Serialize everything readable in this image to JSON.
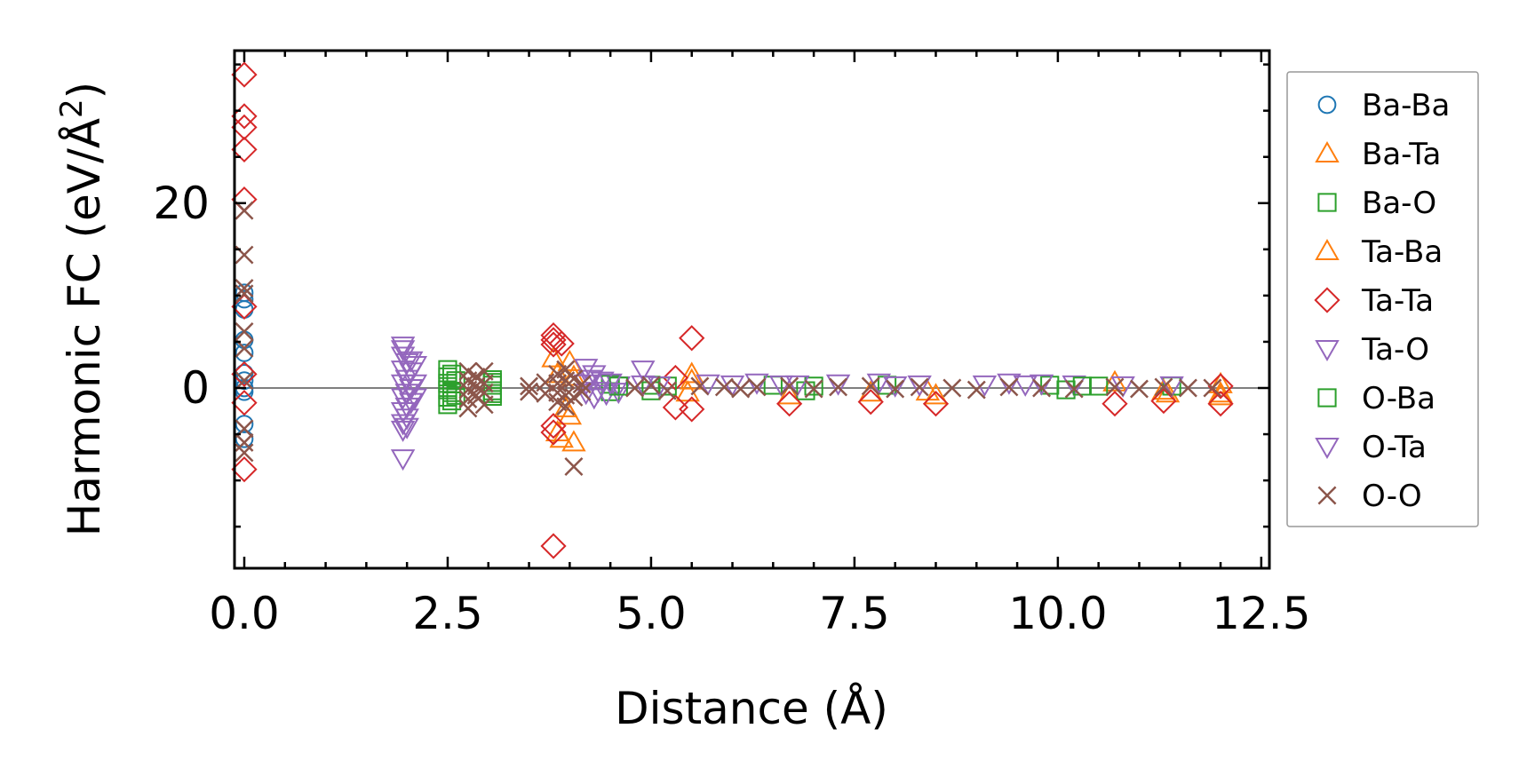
{
  "chart_data": {
    "type": "scatter",
    "title": "",
    "xlabel": "Distance (Å)",
    "ylabel_main": "Harmonic FC (eV/Å",
    "ylabel_sup": "2",
    "ylabel_close": ")",
    "xlim": [
      -0.12,
      12.6
    ],
    "ylim": [
      -19.5,
      36.5
    ],
    "xticks": [
      0.0,
      2.5,
      5.0,
      7.5,
      10.0,
      12.5
    ],
    "xtick_labels": [
      "0.0",
      "2.5",
      "5.0",
      "7.5",
      "10.0",
      "12.5"
    ],
    "yticks": [
      0,
      20
    ],
    "ytick_labels": [
      "0",
      "20"
    ],
    "x_minor_step": 0.5,
    "y_minor_step": 5,
    "hline_y": 0,
    "legend_position": "right",
    "series": [
      {
        "name": "Ba-Ba",
        "marker": "circle",
        "color": "#1f77b4",
        "points": [
          [
            0,
            10.3
          ],
          [
            0,
            9.6
          ],
          [
            0,
            8.5
          ],
          [
            0,
            5.2
          ],
          [
            0,
            3.8
          ],
          [
            0,
            1.6
          ],
          [
            0,
            0.8
          ],
          [
            0,
            0
          ],
          [
            0,
            -0.4
          ],
          [
            0,
            -3.9
          ],
          [
            0,
            -5.5
          ]
        ]
      },
      {
        "name": "Ba-Ta",
        "marker": "triangle-up",
        "color": "#ff7f0e",
        "points": [
          [
            3.85,
            1.5
          ],
          [
            3.85,
            -4.8
          ],
          [
            3.9,
            -5.5
          ],
          [
            4.0,
            2.8
          ],
          [
            4.05,
            -5.9
          ],
          [
            4.0,
            -3.0
          ],
          [
            5.5,
            1.5
          ],
          [
            5.45,
            -0.5
          ],
          [
            6.7,
            -0.8
          ],
          [
            7.7,
            -0.5
          ],
          [
            8.5,
            -0.8
          ],
          [
            10.7,
            0.6
          ],
          [
            11.35,
            -0.6
          ],
          [
            12.0,
            0.4
          ],
          [
            12.0,
            -0.9
          ],
          [
            12.0,
            -0.6
          ]
        ]
      },
      {
        "name": "Ba-O",
        "marker": "square",
        "color": "#2ca02c",
        "points": [
          [
            2.5,
            2.0
          ],
          [
            2.5,
            1.2
          ],
          [
            2.5,
            0.5
          ],
          [
            2.5,
            -0.2
          ],
          [
            2.5,
            -1.0
          ],
          [
            2.5,
            -1.8
          ],
          [
            2.6,
            0.8
          ],
          [
            2.6,
            -0.8
          ],
          [
            3.05,
            0.9
          ],
          [
            3.05,
            0.3
          ],
          [
            3.05,
            -0.3
          ],
          [
            3.05,
            -0.9
          ],
          [
            4.5,
            0.4
          ],
          [
            4.5,
            -0.4
          ],
          [
            5.0,
            0.3
          ],
          [
            5.0,
            -0.3
          ],
          [
            6.5,
            0.3
          ],
          [
            6.9,
            -0.3
          ],
          [
            7.9,
            0.3
          ],
          [
            9.9,
            0.3
          ],
          [
            10.1,
            -0.2
          ],
          [
            10.5,
            0.2
          ],
          [
            11.4,
            0.2
          ]
        ]
      },
      {
        "name": "Ta-Ba",
        "marker": "triangle-up",
        "color": "#ff7f0e",
        "points": [
          [
            3.8,
            3.2
          ],
          [
            3.95,
            -2.2
          ],
          [
            4.05,
            1.2
          ],
          [
            5.5,
            0.8
          ],
          [
            8.4,
            -0.4
          ],
          [
            11.3,
            -0.3
          ]
        ]
      },
      {
        "name": "Ta-Ta",
        "marker": "diamond",
        "color": "#d62728",
        "points": [
          [
            0,
            33.9
          ],
          [
            0,
            29.4
          ],
          [
            0,
            28.2
          ],
          [
            0,
            25.8
          ],
          [
            0,
            20.4
          ],
          [
            0,
            8.8
          ],
          [
            0,
            1.5
          ],
          [
            0,
            -1.6
          ],
          [
            0,
            -8.8
          ],
          [
            3.8,
            5.7
          ],
          [
            3.8,
            5.2
          ],
          [
            3.8,
            4.7
          ],
          [
            3.8,
            -4.1
          ],
          [
            3.8,
            -4.8
          ],
          [
            3.8,
            -17.1
          ],
          [
            3.9,
            4.8
          ],
          [
            5.3,
            1.1
          ],
          [
            5.3,
            -2.1
          ],
          [
            5.5,
            5.4
          ],
          [
            5.5,
            -2.3
          ],
          [
            6.7,
            -1.7
          ],
          [
            7.7,
            -1.5
          ],
          [
            8.5,
            -1.7
          ],
          [
            10.7,
            -1.7
          ],
          [
            11.3,
            -1.4
          ],
          [
            12.0,
            0.2
          ],
          [
            12.0,
            -1.7
          ]
        ]
      },
      {
        "name": "Ta-O",
        "marker": "triangle-down",
        "color": "#9467bd",
        "points": [
          [
            1.95,
            4.6
          ],
          [
            1.95,
            3.5
          ],
          [
            1.95,
            2.0
          ],
          [
            1.95,
            0.5
          ],
          [
            1.95,
            -1.0
          ],
          [
            1.95,
            -2.5
          ],
          [
            1.95,
            -3.8
          ],
          [
            1.95,
            -4.5
          ],
          [
            1.95,
            -7.6
          ],
          [
            2.0,
            2.8
          ],
          [
            2.0,
            1.0
          ],
          [
            2.0,
            -0.5
          ],
          [
            2.0,
            -2.0
          ],
          [
            2.0,
            -3.2
          ],
          [
            2.05,
            1.8
          ],
          [
            2.05,
            0
          ],
          [
            2.05,
            -1.5
          ],
          [
            2.1,
            2.5
          ],
          [
            2.1,
            0.5
          ],
          [
            2.1,
            -1.0
          ],
          [
            4.2,
            2.2
          ],
          [
            4.2,
            0.5
          ],
          [
            4.2,
            -0.5
          ],
          [
            4.3,
            1.5
          ],
          [
            4.3,
            -1.0
          ],
          [
            4.4,
            0.8
          ],
          [
            4.45,
            -0.6
          ],
          [
            4.6,
            0.3
          ],
          [
            4.6,
            -0.4
          ],
          [
            4.9,
            2.0
          ],
          [
            4.9,
            0.4
          ],
          [
            5.7,
            0.5
          ],
          [
            6.0,
            0.4
          ],
          [
            6.3,
            0.6
          ],
          [
            6.6,
            0.4
          ],
          [
            7.3,
            0.5
          ],
          [
            7.8,
            0.6
          ],
          [
            8.3,
            0.4
          ],
          [
            9.1,
            0.4
          ],
          [
            9.4,
            0.6
          ],
          [
            9.8,
            0.5
          ],
          [
            10.2,
            0.4
          ],
          [
            10.8,
            0.3
          ],
          [
            11.4,
            0.3
          ]
        ]
      },
      {
        "name": "O-Ba",
        "marker": "square",
        "color": "#2ca02c",
        "points": [
          [
            2.55,
            1.5
          ],
          [
            2.55,
            -0.5
          ],
          [
            2.55,
            -1.4
          ],
          [
            3.05,
            0.6
          ],
          [
            3.05,
            -0.6
          ],
          [
            4.6,
            0.2
          ],
          [
            5.2,
            0.2
          ],
          [
            7.0,
            0.2
          ],
          [
            10.3,
            0.2
          ]
        ]
      },
      {
        "name": "O-Ta",
        "marker": "triangle-down",
        "color": "#9467bd",
        "points": [
          [
            1.95,
            4.2
          ],
          [
            2.0,
            -4.2
          ],
          [
            2.05,
            3.0
          ],
          [
            4.25,
            1.0
          ],
          [
            4.35,
            -0.3
          ],
          [
            4.5,
            0.6
          ],
          [
            5.1,
            0.3
          ],
          [
            6.8,
            0.4
          ],
          [
            8.0,
            0.3
          ],
          [
            9.6,
            0.4
          ]
        ]
      },
      {
        "name": "O-O",
        "marker": "x",
        "color": "#8c564b",
        "points": [
          [
            0,
            19.2
          ],
          [
            0,
            14.4
          ],
          [
            0,
            10.8
          ],
          [
            0,
            10.2
          ],
          [
            0,
            6.1
          ],
          [
            0,
            4.3
          ],
          [
            0,
            0.8
          ],
          [
            0,
            -4.4
          ],
          [
            0,
            -5.9
          ],
          [
            0,
            -7.0
          ],
          [
            2.75,
            1.8
          ],
          [
            2.75,
            0.8
          ],
          [
            2.75,
            -0.2
          ],
          [
            2.75,
            -1.2
          ],
          [
            2.75,
            -2.2
          ],
          [
            2.85,
            1.2
          ],
          [
            2.85,
            0.2
          ],
          [
            2.85,
            -0.8
          ],
          [
            2.95,
            1.8
          ],
          [
            2.95,
            0.5
          ],
          [
            2.95,
            -0.5
          ],
          [
            2.95,
            -1.8
          ],
          [
            3.5,
            0.2
          ],
          [
            3.5,
            -0.4
          ],
          [
            3.7,
            0.6
          ],
          [
            3.7,
            -0.6
          ],
          [
            3.85,
            1.5
          ],
          [
            3.85,
            0.5
          ],
          [
            3.85,
            -0.5
          ],
          [
            3.85,
            -1.5
          ],
          [
            3.95,
            2.0
          ],
          [
            3.95,
            0.8
          ],
          [
            3.95,
            -0.8
          ],
          [
            3.95,
            -2.0
          ],
          [
            4.05,
            1.0
          ],
          [
            4.05,
            -1.0
          ],
          [
            4.05,
            -8.5
          ],
          [
            4.15,
            0.4
          ],
          [
            4.15,
            -0.4
          ],
          [
            4.8,
            0
          ],
          [
            5.0,
            0.3
          ],
          [
            5.2,
            -0.3
          ],
          [
            5.6,
            0.2
          ],
          [
            5.9,
            0.1
          ],
          [
            6.1,
            -0.1
          ],
          [
            6.3,
            0.1
          ],
          [
            6.7,
            0.2
          ],
          [
            7.0,
            -0.1
          ],
          [
            7.3,
            0.1
          ],
          [
            7.7,
            0.2
          ],
          [
            8.0,
            -0.1
          ],
          [
            8.3,
            0.1
          ],
          [
            8.7,
            0
          ],
          [
            9.0,
            -0.2
          ],
          [
            9.4,
            0.1
          ],
          [
            9.8,
            0
          ],
          [
            10.2,
            -0.1
          ],
          [
            10.7,
            0.1
          ],
          [
            11.0,
            -0.1
          ],
          [
            11.3,
            0.1
          ],
          [
            11.6,
            0
          ],
          [
            11.9,
            0
          ]
        ]
      }
    ]
  }
}
